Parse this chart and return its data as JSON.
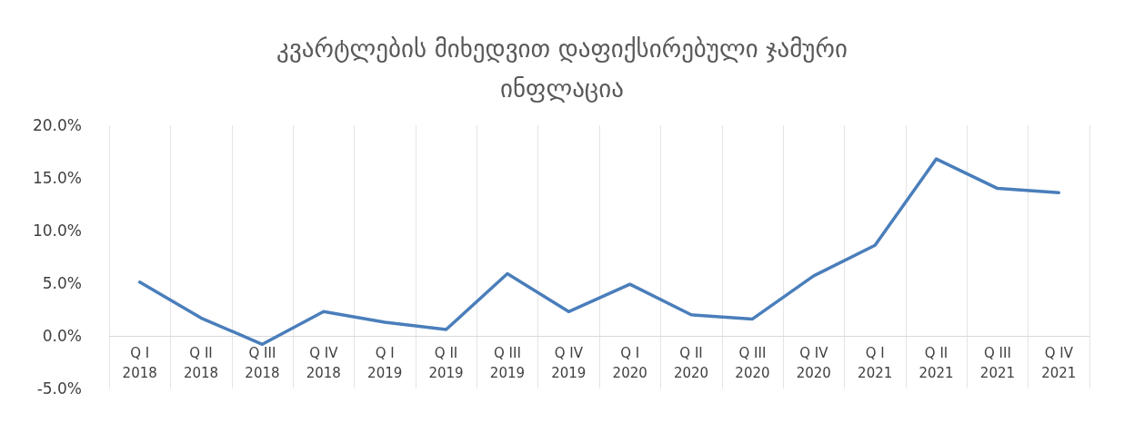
{
  "chart_data": {
    "type": "line",
    "title": "კვარტლების მიხედვით დაფიქსირებული ჯამური ინფლაცია",
    "categories": [
      "Q I 2018",
      "Q II 2018",
      "Q III 2018",
      "Q IV 2018",
      "Q I 2019",
      "Q II 2019",
      "Q III 2019",
      "Q IV 2019",
      "Q I 2020",
      "Q II 2020",
      "Q III 2020",
      "Q IV 2020",
      "Q I 2021",
      "Q II 2021",
      "Q III 2021",
      "Q IV 2021"
    ],
    "series": [
      {
        "color": "#4a7ebb",
        "values": [
          5.1,
          1.7,
          -0.8,
          2.3,
          1.3,
          0.6,
          5.9,
          2.3,
          4.9,
          2.0,
          1.6,
          5.7,
          8.6,
          16.8,
          14.0,
          13.6
        ]
      }
    ],
    "ylim": [
      -5,
      20
    ],
    "yticks": [
      {
        "value": -5,
        "label": "-5.0%"
      },
      {
        "value": 0,
        "label": "0.0%"
      },
      {
        "value": 5,
        "label": "5.0%"
      },
      {
        "value": 10,
        "label": "10.0%"
      },
      {
        "value": 15,
        "label": "15.0%"
      },
      {
        "value": 20,
        "label": "20.0%"
      }
    ],
    "grid": "x",
    "marker": "none",
    "line_style": "solid"
  }
}
